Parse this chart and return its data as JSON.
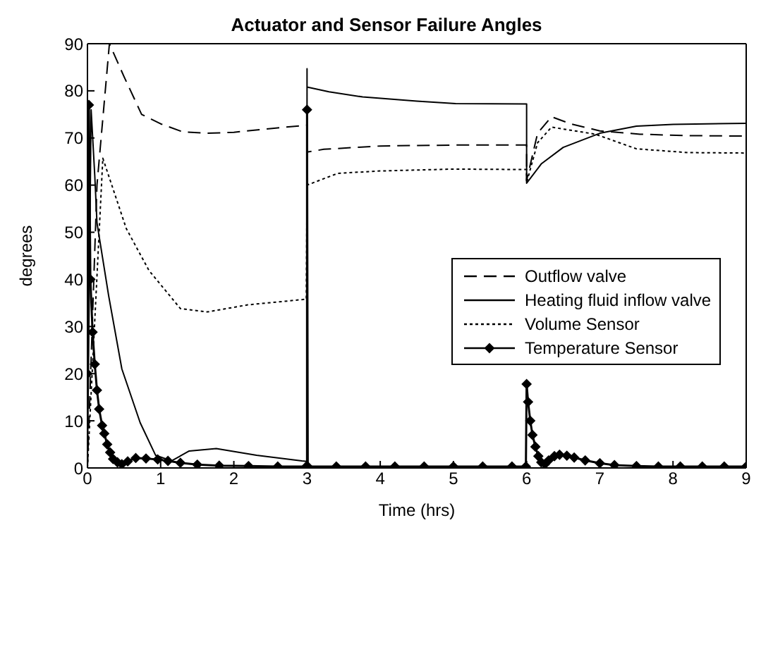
{
  "chart_data": {
    "type": "line",
    "title": "Actuator and Sensor Failure Angles",
    "xlabel": "Time (hrs)",
    "ylabel": "degrees",
    "xlim": [
      0,
      9
    ],
    "xticks": [
      0,
      1,
      2,
      3,
      4,
      5,
      6,
      7,
      8,
      9
    ],
    "ylim": [
      0,
      90
    ],
    "yticks": [
      0,
      10,
      20,
      30,
      40,
      50,
      60,
      70,
      80,
      90
    ],
    "legend": "right",
    "marker": "none",
    "series": [
      {
        "name": "Outflow valve",
        "color": "#000000",
        "line_style": "dashed",
        "x": [
          0,
          0.13,
          0.3,
          0.5,
          0.74,
          1.0,
          1.3,
          1.63,
          2.0,
          2.5,
          3.0,
          3.0,
          3.23,
          4.0,
          5.03,
          6.0,
          6.0,
          6.15,
          6.34,
          6.6,
          7.0,
          7.55,
          8.2,
          9.0
        ],
        "values": [
          0,
          60,
          90,
          83,
          75,
          73,
          71.3,
          71,
          71.2,
          72,
          72.7,
          67,
          67.6,
          68.3,
          68.5,
          68.5,
          61,
          71,
          74.5,
          73,
          71.5,
          70.8,
          70.5,
          70.4
        ]
      },
      {
        "name": "Heating fluid inflow valve",
        "color": "#000000",
        "line_style": "solid",
        "x": [
          0,
          0.05,
          0.1,
          0.13,
          0.29,
          0.47,
          0.72,
          0.93,
          1.15,
          1.39,
          1.76,
          2.31,
          2.93,
          3.0,
          3.0,
          3.0,
          3.3,
          3.76,
          4.5,
          5.03,
          6.0,
          6.0,
          6.2,
          6.5,
          7.0,
          7.5,
          8.0,
          9.0
        ],
        "values": [
          0,
          76,
          62,
          52,
          36.5,
          21,
          9.6,
          2.7,
          1.5,
          3.6,
          4.1,
          2.7,
          1.5,
          1.4,
          84.7,
          80.8,
          79.8,
          78.7,
          77.8,
          77.3,
          77.2,
          60.4,
          64.5,
          68,
          71,
          72.5,
          72.9,
          73.1
        ]
      },
      {
        "name": "Volume Sensor",
        "color": "#000000",
        "line_style": "dotted",
        "x": [
          0,
          0.21,
          0.53,
          0.84,
          1.27,
          1.64,
          2.19,
          2.99,
          3.0,
          3.42,
          4.0,
          5.0,
          6.0,
          6.0,
          6.15,
          6.34,
          6.94,
          7.5,
          8.2,
          9.0
        ],
        "values": [
          0,
          65.7,
          50.8,
          41.9,
          33.8,
          33.1,
          34.6,
          35.8,
          60,
          62.5,
          63,
          63.4,
          63.3,
          60.5,
          69,
          72.3,
          70.8,
          67.7,
          66.9,
          66.8
        ]
      },
      {
        "name": "Temperature Sensor",
        "color": "#000000",
        "line_style": "solid",
        "marker": "diamond",
        "x": [
          0,
          0.02,
          0.04,
          0.07,
          0.1,
          0.13,
          0.16,
          0.2,
          0.23,
          0.27,
          0.31,
          0.35,
          0.41,
          0.47,
          0.55,
          0.66,
          0.8,
          0.96,
          1.1,
          1.27,
          1.5,
          1.8,
          2.2,
          2.6,
          2.99,
          3.0,
          3.0,
          3.01,
          3.4,
          3.8,
          4.2,
          4.6,
          5.0,
          5.4,
          5.8,
          5.99,
          6.0,
          6.02,
          6.05,
          6.08,
          6.12,
          6.16,
          6.2,
          6.25,
          6.3,
          6.38,
          6.45,
          6.55,
          6.65,
          6.8,
          7.0,
          7.2,
          7.5,
          7.8,
          8.1,
          8.4,
          8.7,
          9.0
        ],
        "values": [
          20,
          77,
          40,
          28.8,
          22,
          16.5,
          12.5,
          9,
          7.3,
          5,
          3.3,
          1.9,
          1.2,
          0.8,
          1.4,
          2.1,
          2,
          1.8,
          1.5,
          1.1,
          0.7,
          0.5,
          0.4,
          0.3,
          0.3,
          0.3,
          76,
          0.3,
          0.3,
          0.3,
          0.3,
          0.3,
          0.3,
          0.3,
          0.3,
          0.3,
          17.8,
          14,
          10,
          7,
          4.5,
          2.5,
          1.2,
          0.8,
          1.6,
          2.5,
          2.8,
          2.6,
          2.2,
          1.6,
          1,
          0.6,
          0.4,
          0.3,
          0.3,
          0.3,
          0.3,
          0.3
        ]
      }
    ]
  }
}
